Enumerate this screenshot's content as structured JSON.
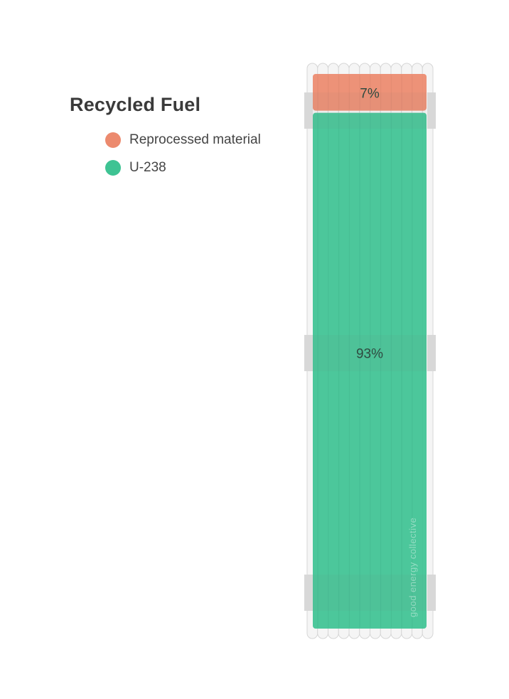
{
  "chart_data": {
    "type": "bar",
    "stacked": true,
    "orientation": "vertical",
    "title": "Recycled Fuel",
    "unit": "%",
    "categories": [
      ""
    ],
    "series": [
      {
        "name": "Reprocessed material",
        "values": [
          7
        ],
        "label": "7%",
        "color": "#ec8a6e"
      },
      {
        "name": "U-238",
        "values": [
          93
        ],
        "label": "93%",
        "color": "#3ec393"
      }
    ],
    "ylim": [
      0,
      100
    ],
    "grid": false,
    "legend_position": "top-left"
  },
  "legend": {
    "title": "Recycled Fuel",
    "items": [
      {
        "label": "Reprocessed material",
        "color": "#ec8a6e"
      },
      {
        "label": "U-238",
        "color": "#3ec393"
      }
    ]
  },
  "watermark": "good energy collective"
}
